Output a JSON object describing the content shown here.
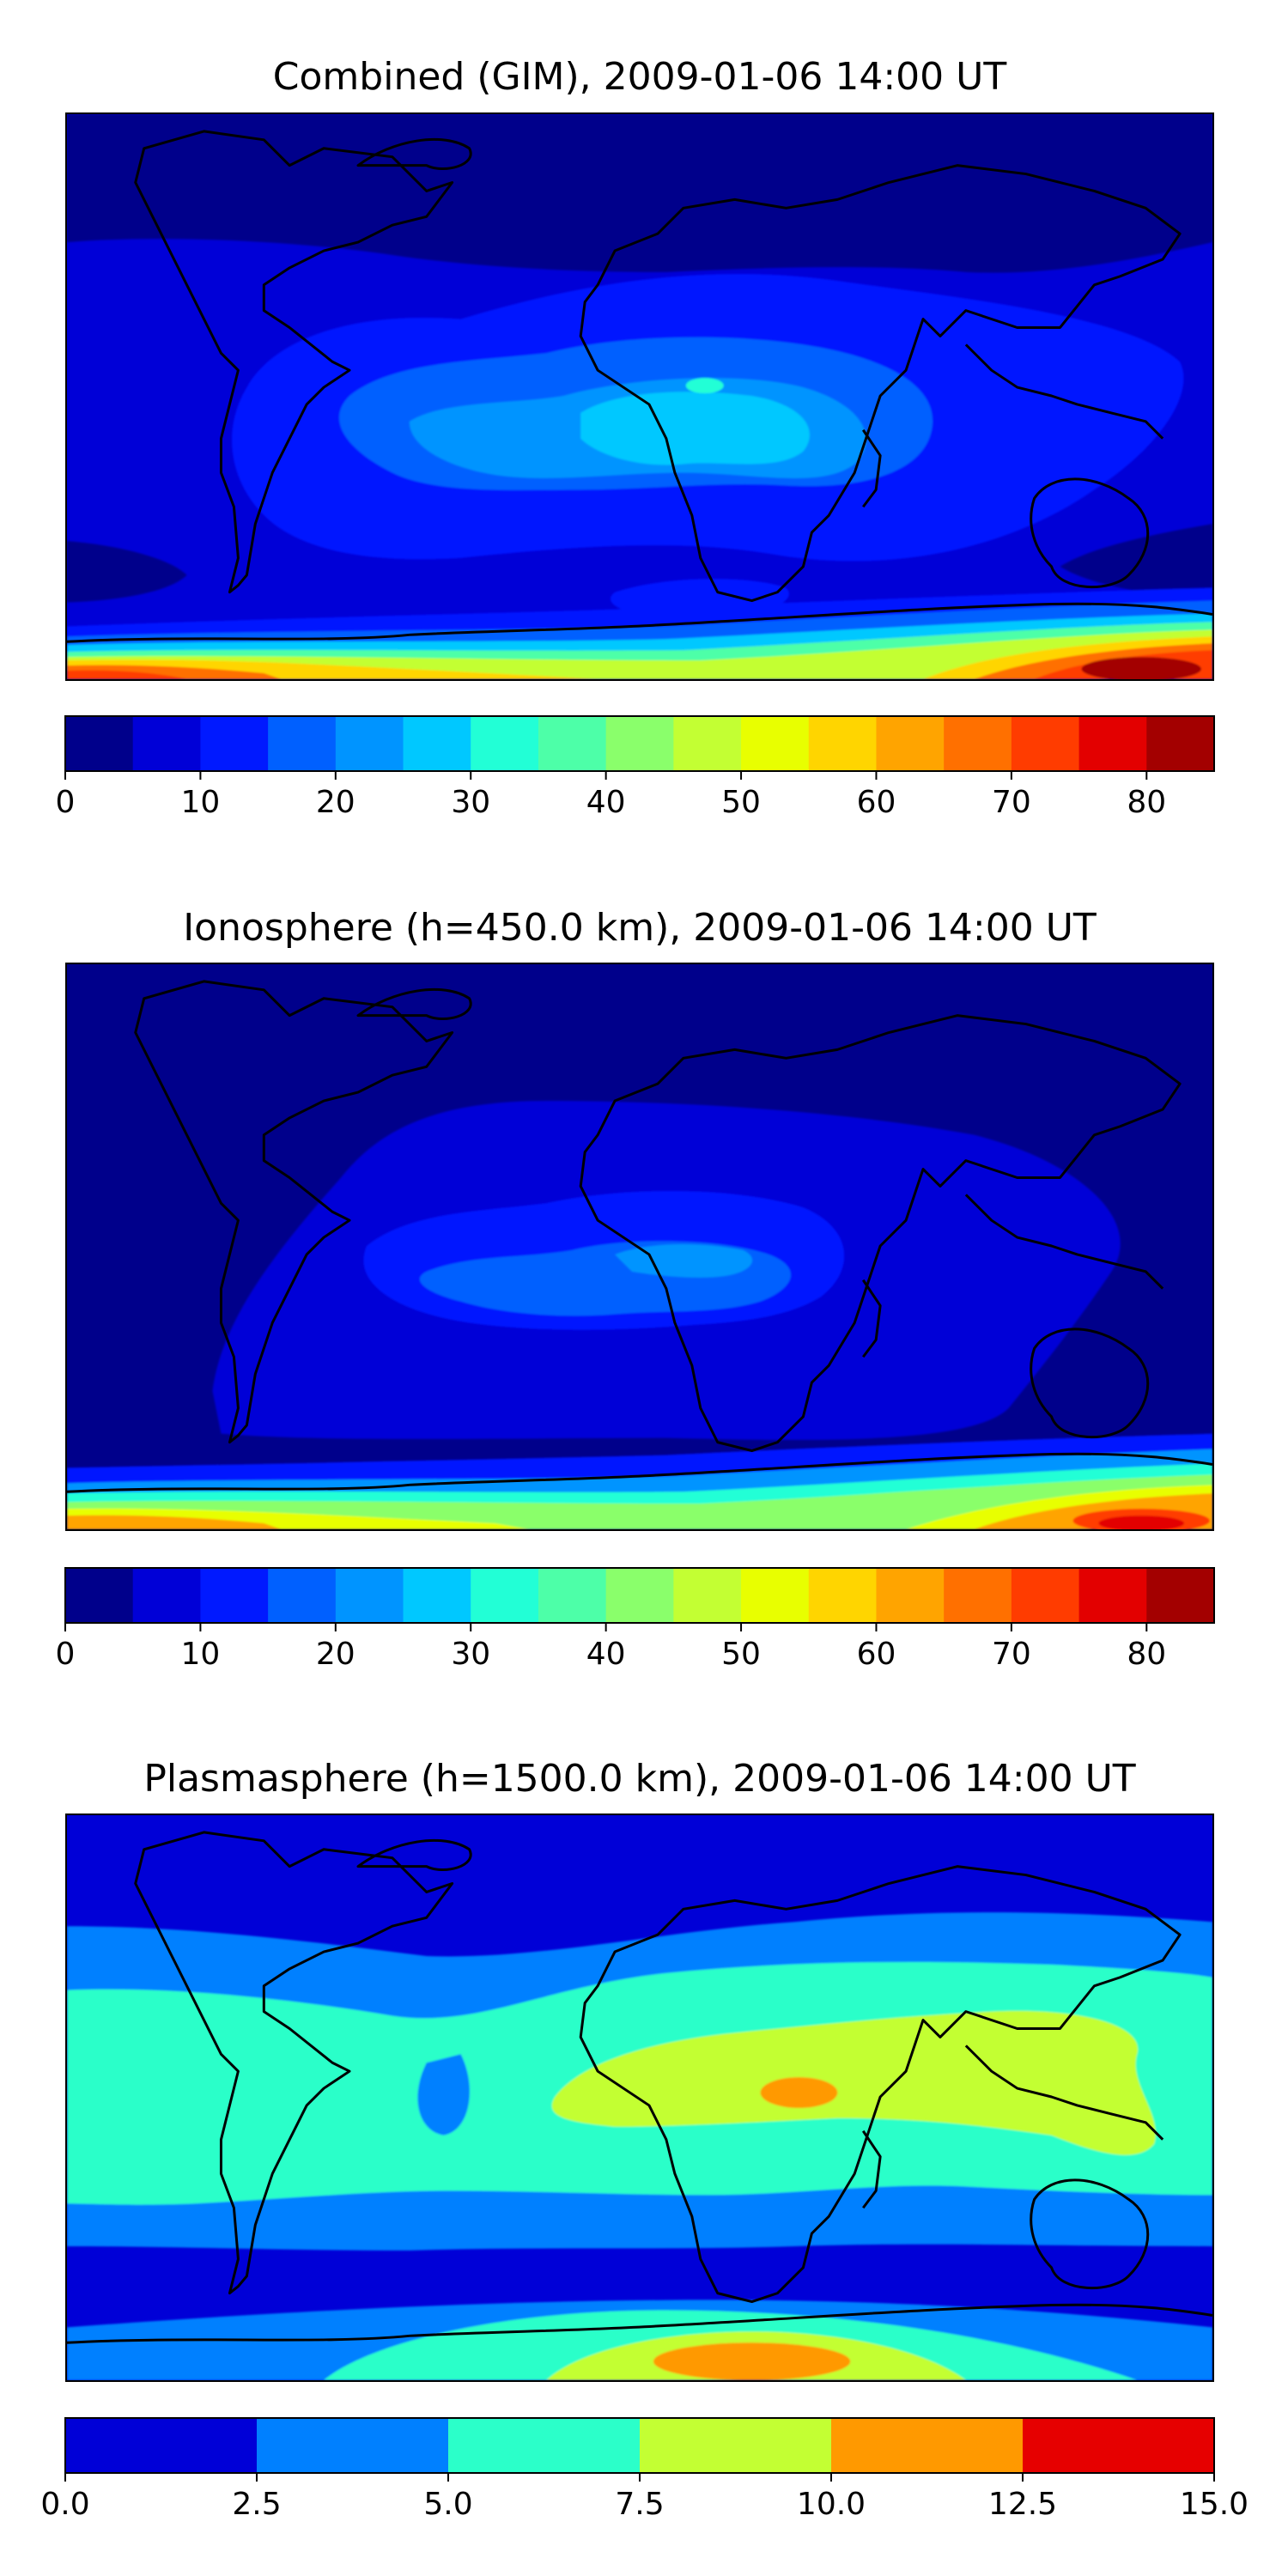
{
  "chart_data": [
    {
      "type": "heatmap",
      "title": "Combined (GIM), 2009-01-06 14:00 UT",
      "colorbar": {
        "ticks": [
          "0",
          "10",
          "20",
          "30",
          "40",
          "50",
          "60",
          "70",
          "80"
        ],
        "range": [
          0,
          85
        ],
        "levels": [
          0,
          5,
          10,
          15,
          20,
          25,
          30,
          35,
          40,
          45,
          50,
          55,
          60,
          65,
          70,
          75,
          80,
          85
        ],
        "colors": [
          "#00008b",
          "#0000d7",
          "#0019ff",
          "#0060ff",
          "#0094ff",
          "#00c8ff",
          "#22ffd6",
          "#4dffa8",
          "#8aff6b",
          "#c3ff33",
          "#e8ff00",
          "#ffd500",
          "#ffa400",
          "#ff7000",
          "#ff3c00",
          "#e30000",
          "#a30000"
        ]
      },
      "features": {
        "background_level": 10,
        "polar_cap_north_level": 5,
        "equatorial_anomaly_peak_level": 30,
        "south_polar_peak_level": 80
      }
    },
    {
      "type": "heatmap",
      "title": "Ionosphere  (h=450.0 km), 2009-01-06 14:00 UT",
      "colorbar": {
        "ticks": [
          "0",
          "10",
          "20",
          "30",
          "40",
          "50",
          "60",
          "70",
          "80"
        ],
        "range": [
          0,
          85
        ],
        "levels": [
          0,
          5,
          10,
          15,
          20,
          25,
          30,
          35,
          40,
          45,
          50,
          55,
          60,
          65,
          70,
          75,
          80,
          85
        ],
        "colors": [
          "#00008b",
          "#0000d7",
          "#0019ff",
          "#0060ff",
          "#0094ff",
          "#00c8ff",
          "#22ffd6",
          "#4dffa8",
          "#8aff6b",
          "#c3ff33",
          "#e8ff00",
          "#ffd500",
          "#ffa400",
          "#ff7000",
          "#ff3c00",
          "#e30000",
          "#a30000"
        ]
      },
      "features": {
        "background_level": 5,
        "equatorial_anomaly_peak_level": 20,
        "south_polar_peak_level": 75
      }
    },
    {
      "type": "heatmap",
      "title": "Plasmasphere (h=1500.0 km), 2009-01-06 14:00 UT",
      "colorbar": {
        "ticks": [
          "0.0",
          "2.5",
          "5.0",
          "7.5",
          "10.0",
          "12.5",
          "15.0"
        ],
        "range": [
          0,
          15
        ],
        "levels": [
          0,
          2.5,
          5,
          7.5,
          10,
          12.5,
          15
        ],
        "colors": [
          "#0000d7",
          "#0080ff",
          "#2bffc9",
          "#c3ff33",
          "#ff9900",
          "#e60000"
        ]
      },
      "features": {
        "background_level": 0,
        "equatorial_band_level": 5,
        "peak_level": 10
      }
    }
  ]
}
